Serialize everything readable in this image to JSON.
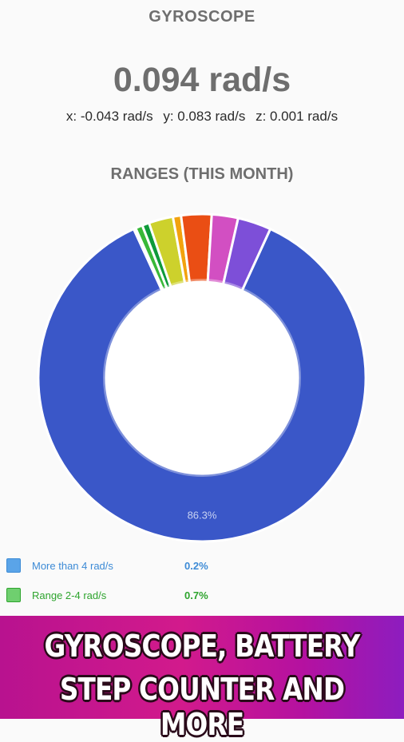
{
  "header": {
    "title": "GYROSCOPE"
  },
  "reading": {
    "magnitude": "0.094 rad/s",
    "x": "x: -0.043 rad/s",
    "y": "y: 0.083 rad/s",
    "z": "z: 0.001 rad/s"
  },
  "ranges": {
    "title": "RANGES (THIS MONTH)"
  },
  "chart_data": {
    "type": "pie",
    "title": "RANGES (THIS MONTH)",
    "slices": [
      {
        "label": "",
        "value": 86.3,
        "color": "#3a57c8",
        "shown_label": "86.3%"
      },
      {
        "label": "More than 4 rad/s",
        "value": 0.2,
        "color": "#5aa4e8",
        "shown_label": ""
      },
      {
        "label": "Range 2-4 rad/s",
        "value": 0.7,
        "color": "#38b838",
        "shown_label": ""
      },
      {
        "label": "",
        "value": 0.7,
        "color": "#0e9a3a",
        "shown_label": ""
      },
      {
        "label": "",
        "value": 2.4,
        "color": "#cdd12c",
        "shown_label": ""
      },
      {
        "label": "",
        "value": 0.8,
        "color": "#f2a20e",
        "shown_label": ""
      },
      {
        "label": "",
        "value": 3.0,
        "color": "#ea4e14",
        "shown_label": ""
      },
      {
        "label": "",
        "value": 2.6,
        "color": "#d24fc2",
        "shown_label": ""
      },
      {
        "label": "",
        "value": 3.3,
        "color": "#7d4fd8",
        "shown_label": ""
      }
    ]
  },
  "legend": [
    {
      "label": "More than 4 rad/s",
      "pct": "0.2%",
      "color": "#5aa4e8",
      "border": "#3d8bd6",
      "text_color": "#3d8bd6"
    },
    {
      "label": "Range 2-4 rad/s",
      "pct": "0.7%",
      "color": "#6fcf6f",
      "border": "#2ea42e",
      "text_color": "#2ea42e"
    }
  ],
  "banner": {
    "line1": "GYROSCOPE, BATTERY",
    "line2": "STEP COUNTER AND MORE"
  }
}
